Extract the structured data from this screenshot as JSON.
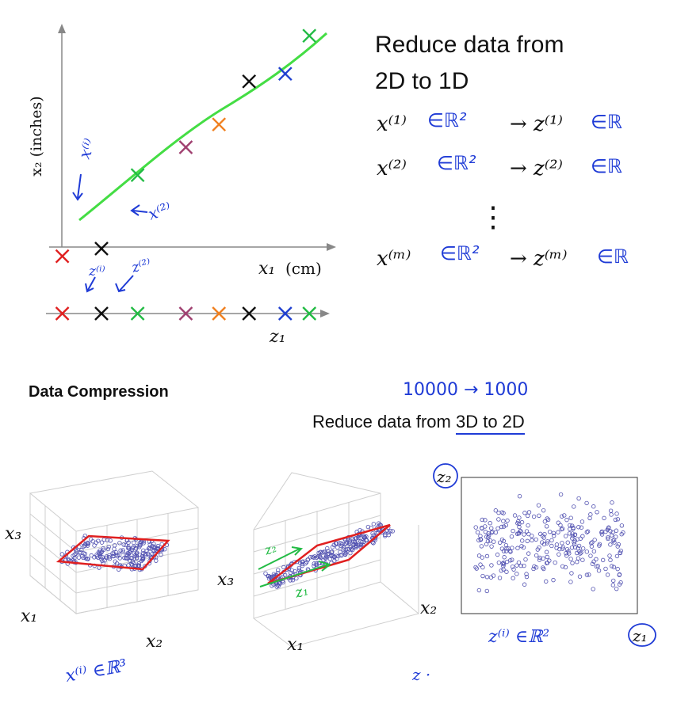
{
  "top_plot": {
    "ylabel": "x₂ (inches)",
    "xlabel_math": "x₁",
    "xlabel_unit": "(cm)",
    "line_axis_label": "z₁",
    "annot_xi": "x⁽ⁱ⁾",
    "annot_x2": "x⁽²⁾",
    "annot_zi": "z⁽ⁱ⁾",
    "annot_z2": "z⁽²⁾"
  },
  "right_text": {
    "line1": "Reduce data from",
    "line2": "2D to 1D",
    "rows": [
      {
        "lhs": "x⁽¹⁾",
        "lhs_hand": "∈ℝ²",
        "rhs": "→ z⁽¹⁾",
        "rhs_hand": "∈ℝ"
      },
      {
        "lhs": "x⁽²⁾",
        "lhs_hand": "∈ℝ²",
        "rhs": "→ z⁽²⁾",
        "rhs_hand": "∈ℝ"
      },
      {
        "lhs": "x⁽ᵐ⁾",
        "lhs_hand": "∈ℝ²",
        "rhs": "→ z⁽ᵐ⁾",
        "rhs_hand": "∈ℝ"
      }
    ],
    "vdots": "⋮"
  },
  "section": {
    "title": "Data Compression",
    "hand_note": "10000 → 1000",
    "subtitle_prefix": "Reduce data from ",
    "subtitle_underlined": "3D to 2D"
  },
  "bottom_plots": {
    "left": {
      "x3": "x₃",
      "x1": "x₁",
      "x2": "x₂",
      "hand": "x⁽ⁱ⁾ ∈ℝ³"
    },
    "middle": {
      "x3": "x₃",
      "x1": "x₁",
      "x2": "x₂",
      "hand_z1": "z₁",
      "hand_z2": "z₂",
      "hand_bottom": "z ·"
    },
    "right": {
      "z2": "z₂",
      "z1": "z₁",
      "hand": "z⁽ⁱ⁾ ∈ℝ²"
    }
  },
  "colors": {
    "fit_line": "#44dd44",
    "red": "#e02020",
    "black": "#111111",
    "green": "#22bb44",
    "purple": "#a04070",
    "orange": "#f08020",
    "blue": "#2040d0",
    "hand_blue": "#1f3bd6",
    "scatter": "#5050b0",
    "plane": "#e02020"
  },
  "chart_data": [
    {
      "type": "scatter",
      "title": "",
      "xlabel": "x₁ (cm)",
      "ylabel": "x₂ (inches)",
      "points": [
        {
          "x": 0.12,
          "y": 0.12,
          "color": "red"
        },
        {
          "x": 0.25,
          "y": 0.15,
          "color": "black"
        },
        {
          "x": 0.37,
          "y": 0.44,
          "color": "green"
        },
        {
          "x": 0.53,
          "y": 0.55,
          "color": "purple"
        },
        {
          "x": 0.64,
          "y": 0.64,
          "color": "orange"
        },
        {
          "x": 0.74,
          "y": 0.81,
          "color": "black"
        },
        {
          "x": 0.86,
          "y": 0.84,
          "color": "blue"
        },
        {
          "x": 0.94,
          "y": 0.99,
          "color": "green"
        }
      ],
      "projection_z1": [
        0.12,
        0.25,
        0.37,
        0.53,
        0.64,
        0.74,
        0.86,
        0.94
      ]
    }
  ]
}
